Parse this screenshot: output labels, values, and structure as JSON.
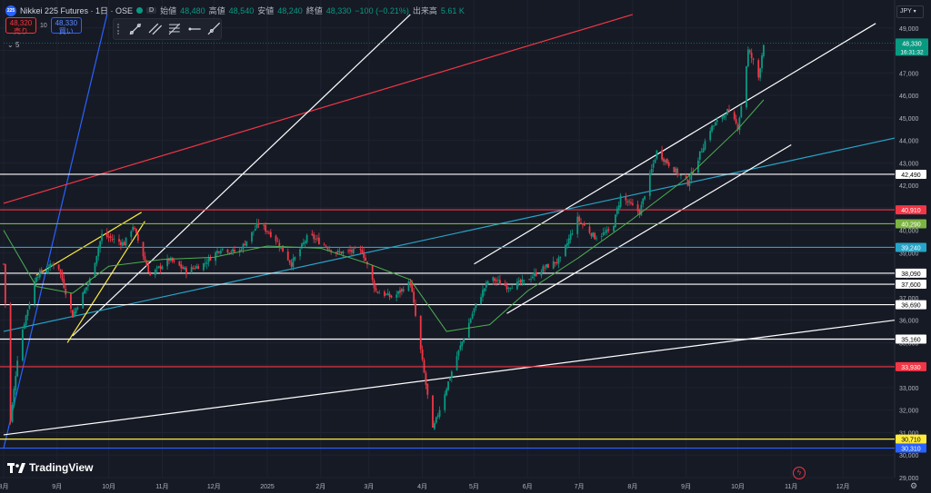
{
  "header": {
    "symbol": "Nikkei 225 Futures · 1日 · OSE",
    "badge": "D",
    "open_label": "始値",
    "open": "48,480",
    "high_label": "高値",
    "high": "48,540",
    "low_label": "安値",
    "low": "48,240",
    "close_label": "終値",
    "close": "48,330",
    "change": "−100 (−0.21%)",
    "volume_label": "出来高",
    "volume": "5.61 K"
  },
  "trade": {
    "sell_price": "48,320",
    "sell_label": "売り",
    "qty": "10",
    "buy_price": "48,330",
    "buy_label": "買い"
  },
  "indicator_count": "5",
  "currency": "JPY",
  "brand": "TradingView",
  "colors": {
    "up": "#089981",
    "down": "#f23645",
    "bg": "#161a25",
    "white_line": "#ffffff",
    "red_line": "#f23645",
    "green_line": "#7cb342",
    "cyan_line": "#26a4c8",
    "yellow_line": "#ffeb3b",
    "blue_line": "#2962ff",
    "ma": "#4caf50"
  },
  "chart_data": {
    "type": "candlestick",
    "y_range": [
      29000,
      50000
    ],
    "y_ticks": [
      29000,
      30000,
      31000,
      32000,
      33000,
      34000,
      35000,
      36000,
      37000,
      38000,
      39000,
      40000,
      41000,
      42000,
      43000,
      44000,
      45000,
      46000,
      47000,
      48000,
      49000
    ],
    "x_range": [
      "2024-08-01",
      "2025-12-31"
    ],
    "x_ticks": [
      {
        "date": "2024-08-01",
        "label": "8月"
      },
      {
        "date": "2024-09-01",
        "label": "9月"
      },
      {
        "date": "2024-10-01",
        "label": "10月"
      },
      {
        "date": "2024-11-01",
        "label": "11月"
      },
      {
        "date": "2024-12-01",
        "label": "12月"
      },
      {
        "date": "2025-01-01",
        "label": "2025"
      },
      {
        "date": "2025-02-01",
        "label": "2月"
      },
      {
        "date": "2025-03-01",
        "label": "3月"
      },
      {
        "date": "2025-04-01",
        "label": "4月"
      },
      {
        "date": "2025-05-01",
        "label": "5月"
      },
      {
        "date": "2025-06-01",
        "label": "6月"
      },
      {
        "date": "2025-07-01",
        "label": "7月"
      },
      {
        "date": "2025-08-01",
        "label": "8月"
      },
      {
        "date": "2025-09-01",
        "label": "9月"
      },
      {
        "date": "2025-10-01",
        "label": "10月"
      },
      {
        "date": "2025-11-01",
        "label": "11月"
      },
      {
        "date": "2025-12-01",
        "label": "12月"
      }
    ],
    "price_path": [
      [
        "2024-08-01",
        38500
      ],
      [
        "2024-08-05",
        31500
      ],
      [
        "2024-08-10",
        35000
      ],
      [
        "2024-08-20",
        38000
      ],
      [
        "2024-09-01",
        38600
      ],
      [
        "2024-09-10",
        36200
      ],
      [
        "2024-09-20",
        37800
      ],
      [
        "2024-09-27",
        39800
      ],
      [
        "2024-10-10",
        39400
      ],
      [
        "2024-10-15",
        40200
      ],
      [
        "2024-10-25",
        38000
      ],
      [
        "2024-11-05",
        38700
      ],
      [
        "2024-11-15",
        38200
      ],
      [
        "2024-11-25",
        38500
      ],
      [
        "2024-12-05",
        39200
      ],
      [
        "2024-12-15",
        39000
      ],
      [
        "2024-12-27",
        40300
      ],
      [
        "2025-01-05",
        39700
      ],
      [
        "2025-01-15",
        38500
      ],
      [
        "2025-01-25",
        39800
      ],
      [
        "2025-02-10",
        39000
      ],
      [
        "2025-02-25",
        39100
      ],
      [
        "2025-03-05",
        37300
      ],
      [
        "2025-03-15",
        37000
      ],
      [
        "2025-03-25",
        37700
      ],
      [
        "2025-04-07",
        31100
      ],
      [
        "2025-04-20",
        34200
      ],
      [
        "2025-05-01",
        36500
      ],
      [
        "2025-05-10",
        37900
      ],
      [
        "2025-05-20",
        37500
      ],
      [
        "2025-05-30",
        37700
      ],
      [
        "2025-06-10",
        38300
      ],
      [
        "2025-06-20",
        38700
      ],
      [
        "2025-06-30",
        40500
      ],
      [
        "2025-07-10",
        39700
      ],
      [
        "2025-07-20",
        40000
      ],
      [
        "2025-07-25",
        41500
      ],
      [
        "2025-08-05",
        40800
      ],
      [
        "2025-08-15",
        43500
      ],
      [
        "2025-08-25",
        42700
      ],
      [
        "2025-09-02",
        42100
      ],
      [
        "2025-09-15",
        44500
      ],
      [
        "2025-09-25",
        45300
      ],
      [
        "2025-10-01",
        44600
      ],
      [
        "2025-10-04",
        46000
      ],
      [
        "2025-10-07",
        48000
      ],
      [
        "2025-10-10",
        47500
      ],
      [
        "2025-10-13",
        46800
      ],
      [
        "2025-10-16",
        48330
      ]
    ],
    "moving_average": [
      [
        "2024-08-01",
        40000
      ],
      [
        "2024-08-20",
        37500
      ],
      [
        "2024-09-10",
        37200
      ],
      [
        "2024-10-01",
        38400
      ],
      [
        "2024-11-01",
        38700
      ],
      [
        "2024-12-01",
        38800
      ],
      [
        "2025-01-01",
        39300
      ],
      [
        "2025-02-01",
        39200
      ],
      [
        "2025-03-01",
        38500
      ],
      [
        "2025-03-25",
        37800
      ],
      [
        "2025-04-15",
        35500
      ],
      [
        "2025-05-10",
        35800
      ],
      [
        "2025-06-01",
        37300
      ],
      [
        "2025-07-01",
        38800
      ],
      [
        "2025-08-01",
        40500
      ],
      [
        "2025-09-01",
        42300
      ],
      [
        "2025-10-01",
        44500
      ],
      [
        "2025-10-16",
        45800
      ]
    ],
    "horizontal_levels": [
      {
        "price": 42490,
        "label": "42,490",
        "color": "#ffffff",
        "text": "#000000"
      },
      {
        "price": 40910,
        "label": "40,910",
        "color": "#f23645",
        "text": "#ffffff"
      },
      {
        "price": 40290,
        "label": "40,290",
        "color": "#7cb342",
        "text": "#ffffff"
      },
      {
        "price": 39240,
        "label": "39,240",
        "color": "#26a4c8",
        "text": "#ffffff"
      },
      {
        "price": 38090,
        "label": "38,090",
        "color": "#ffffff",
        "text": "#000000"
      },
      {
        "price": 37600,
        "label": "37,600",
        "color": "#ffffff",
        "text": "#000000"
      },
      {
        "price": 36690,
        "label": "36,690",
        "color": "#ffffff",
        "text": "#000000"
      },
      {
        "price": 35160,
        "label": "35,160",
        "color": "#ffffff",
        "text": "#000000"
      },
      {
        "price": 33930,
        "label": "33,930",
        "color": "#f23645",
        "text": "#ffffff"
      },
      {
        "price": 30710,
        "label": "30,710",
        "color": "#ffeb3b",
        "text": "#000000"
      },
      {
        "price": 30310,
        "label": "30,310",
        "color": "#2962ff",
        "text": "#ffffff"
      }
    ],
    "trend_lines": [
      {
        "color": "#2962ff",
        "from": [
          "2024-08-01",
          30300
        ],
        "to": [
          "2024-09-30",
          49600
        ]
      },
      {
        "color": "#f23645",
        "from": [
          "2024-08-01",
          41200
        ],
        "to": [
          "2025-08-01",
          49600
        ]
      },
      {
        "color": "#ffffff",
        "from": [
          "2024-09-10",
          35300
        ],
        "to": [
          "2025-03-25",
          49600
        ]
      },
      {
        "color": "#ffffff",
        "from": [
          "2024-08-01",
          30900
        ],
        "to": [
          "2025-12-31",
          36000
        ]
      },
      {
        "color": "#26a4c8",
        "from": [
          "2024-08-01",
          35500
        ],
        "to": [
          "2025-12-31",
          44100
        ]
      },
      {
        "color": "#ffffff",
        "from": [
          "2025-05-01",
          38500
        ],
        "to": [
          "2025-12-20",
          49200
        ]
      },
      {
        "color": "#ffffff",
        "from": [
          "2025-05-20",
          36300
        ],
        "to": [
          "2025-11-01",
          43800
        ]
      },
      {
        "color": "#ffeb3b",
        "from": [
          "2024-08-20",
          38000
        ],
        "to": [
          "2024-10-20",
          40800
        ]
      },
      {
        "color": "#ffeb3b",
        "from": [
          "2024-09-07",
          35000
        ],
        "to": [
          "2024-10-22",
          40400
        ]
      }
    ],
    "last_price": {
      "price": 48330,
      "label": "48,330",
      "countdown": "16:31:32"
    }
  }
}
